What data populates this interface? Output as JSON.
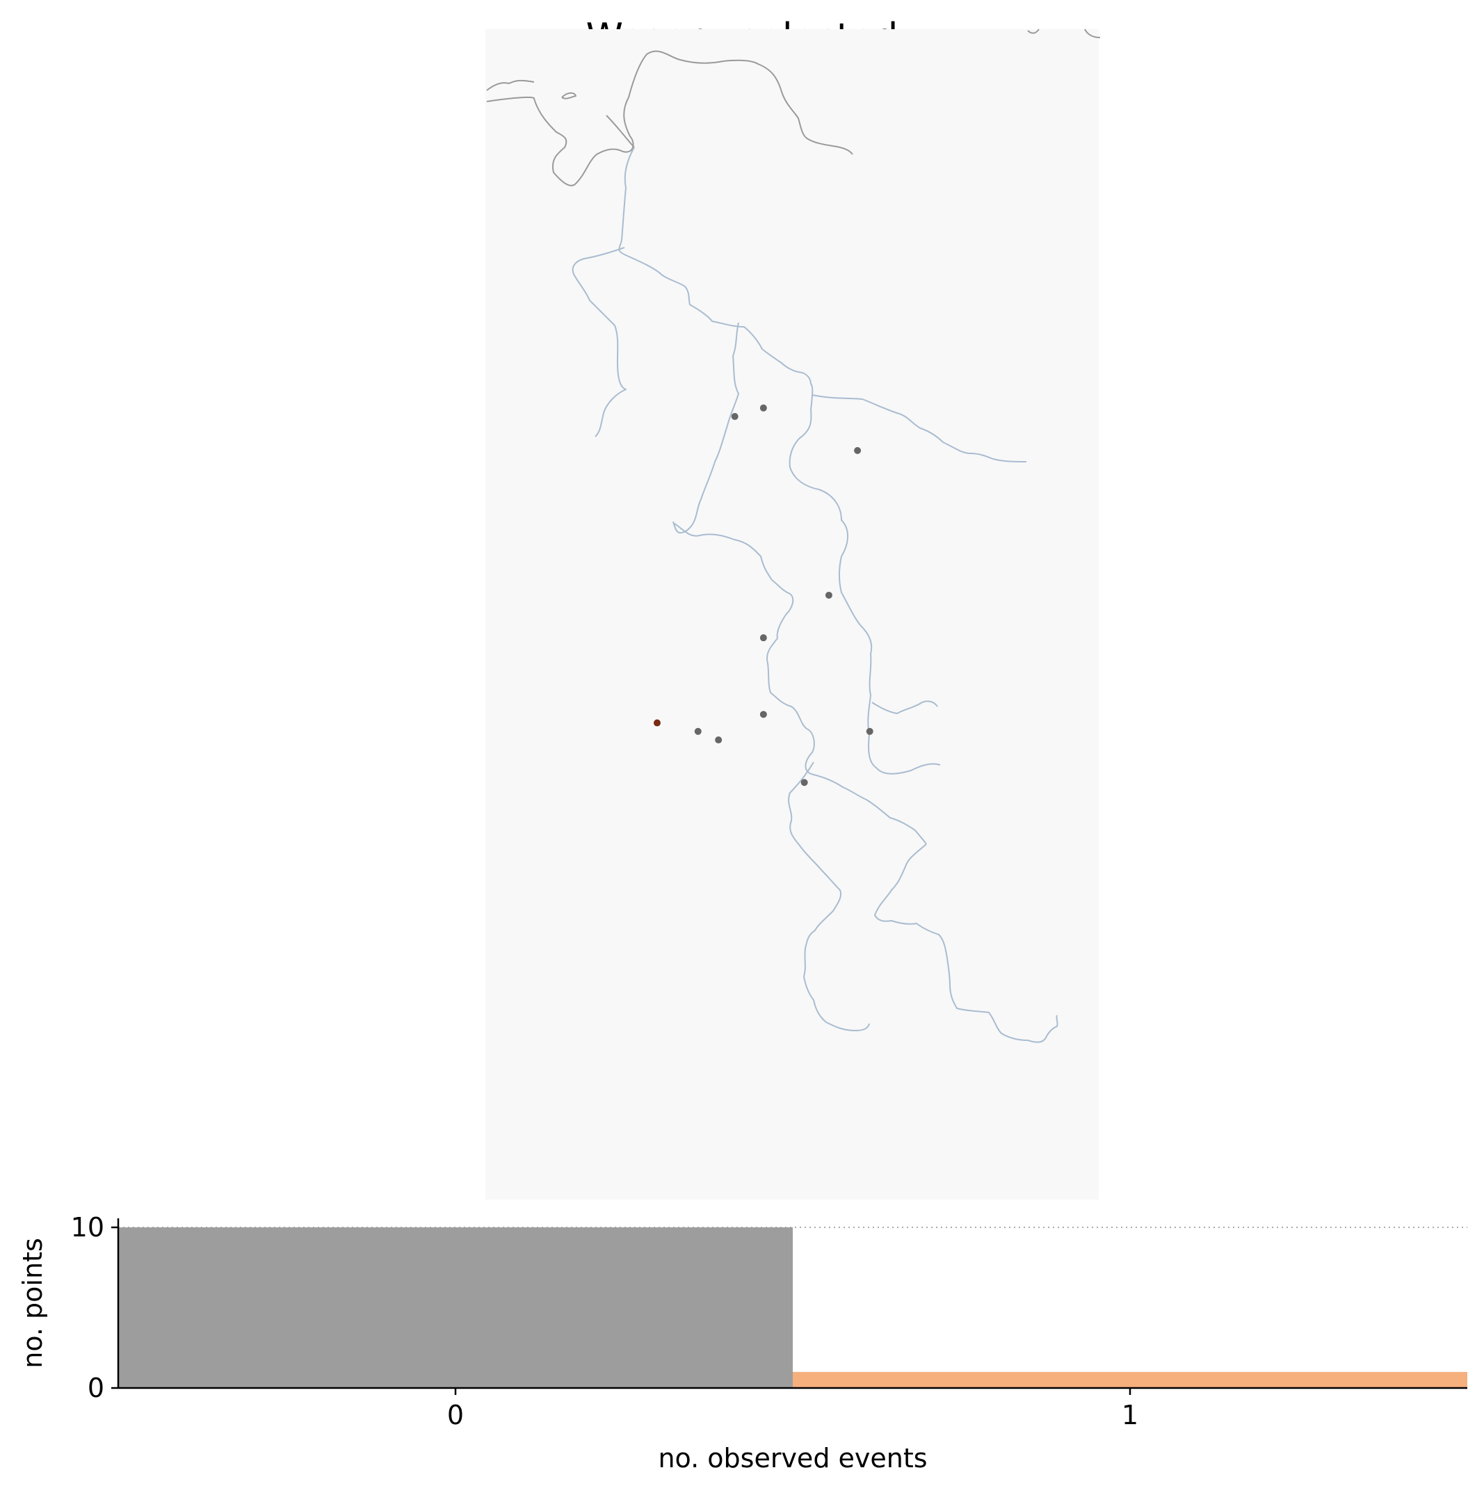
{
  "title": "Weser - selected",
  "colors": {
    "map_background": "#f8f8f8",
    "river": "#a9bcd0",
    "coast": "#9a9a9a",
    "station_default": "#666666",
    "station_selected": "#7a2a12",
    "bar_zero": "#9d9d9d",
    "bar_one": "#f6b07e"
  },
  "stations": [
    {
      "id": "s1",
      "lon": 8.98,
      "lat": 53.06,
      "selected": false
    },
    {
      "id": "s2",
      "lon": 8.91,
      "lat": 53.04,
      "selected": false
    },
    {
      "id": "s3",
      "lon": 9.21,
      "lat": 52.96,
      "selected": false
    },
    {
      "id": "s4",
      "lon": 9.14,
      "lat": 52.62,
      "selected": false
    },
    {
      "id": "s5",
      "lon": 8.98,
      "lat": 52.52,
      "selected": false
    },
    {
      "id": "s6",
      "lon": 8.98,
      "lat": 52.34,
      "selected": false
    },
    {
      "id": "s7",
      "lon": 8.72,
      "lat": 52.32,
      "selected": true
    },
    {
      "id": "s8",
      "lon": 8.82,
      "lat": 52.3,
      "selected": false
    },
    {
      "id": "s9",
      "lon": 8.87,
      "lat": 52.28,
      "selected": false
    },
    {
      "id": "s10",
      "lon": 9.24,
      "lat": 52.3,
      "selected": false
    },
    {
      "id": "s11",
      "lon": 9.08,
      "lat": 52.18,
      "selected": false
    }
  ],
  "chart_data": {
    "type": "bar",
    "categories": [
      "0",
      "1"
    ],
    "values": [
      10,
      1
    ],
    "xlabel": "no. observed events",
    "ylabel": "no. points",
    "ylim": [
      0,
      10
    ],
    "yticks": [
      "0",
      "10"
    ],
    "reference_line": 10
  }
}
